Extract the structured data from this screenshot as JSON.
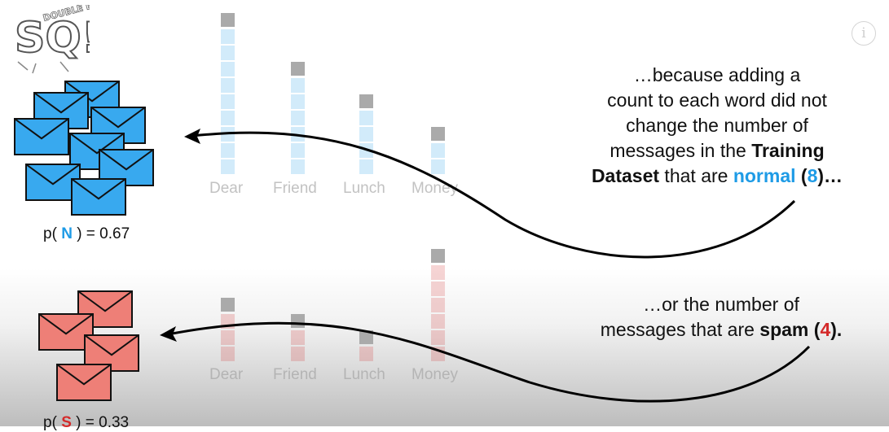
{
  "logo": {
    "text_main": "SQ!",
    "text_small": "DOUBLE BAM!!"
  },
  "info_icon": "info-icon",
  "top_caption": {
    "line1": "…because adding a",
    "line2": "count to each word did not",
    "line3": "change the number of",
    "line4_prefix": "messages in the ",
    "line4_bold": "Training",
    "line5_bold": "Dataset",
    "line5_mid": " that are ",
    "line5_normal": "normal",
    "line5_open": " (",
    "line5_count": "8",
    "line5_close": ")…"
  },
  "bottom_caption": {
    "line1": "…or the number of",
    "line2_prefix": "messages that are ",
    "line2_spam": "spam",
    "line2_open": " (",
    "line2_count": "4",
    "line2_close": ")."
  },
  "normal_prob": {
    "prefix": "p( ",
    "letter": "N",
    "suffix": " ) = 0.67"
  },
  "spam_prob": {
    "prefix": "p( ",
    "letter": "S",
    "suffix": " ) = 0.33"
  },
  "words": [
    "Dear",
    "Friend",
    "Lunch",
    "Money"
  ],
  "normal_counts": [
    9,
    6,
    4,
    2
  ],
  "spam_counts": [
    3,
    2,
    1,
    6
  ],
  "colors": {
    "normal": "#1e9be6",
    "normal_envelope": "#38a9ef",
    "spam": "#d42a2a",
    "spam_envelope": "#ee7f77",
    "bar_cap": "#aaaaaa"
  }
}
